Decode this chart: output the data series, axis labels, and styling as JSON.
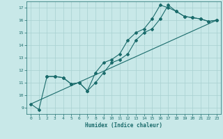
{
  "title": "",
  "xlabel": "Humidex (Indice chaleur)",
  "ylabel": "",
  "xlim": [
    -0.5,
    23.5
  ],
  "ylim": [
    8.5,
    17.5
  ],
  "xticks": [
    0,
    1,
    2,
    3,
    4,
    5,
    6,
    7,
    8,
    9,
    10,
    11,
    12,
    13,
    14,
    15,
    16,
    17,
    18,
    19,
    20,
    21,
    22,
    23
  ],
  "yticks": [
    9,
    10,
    11,
    12,
    13,
    14,
    15,
    16,
    17
  ],
  "background_color": "#c8e8e8",
  "grid_color": "#a8d0d0",
  "line_color": "#1a6b6b",
  "line1_x": [
    0,
    1,
    2,
    3,
    4,
    5,
    6,
    7,
    8,
    9,
    10,
    11,
    12,
    13,
    14,
    15,
    16,
    17,
    18,
    19,
    20,
    21,
    22,
    23
  ],
  "line1_y": [
    9.3,
    8.85,
    11.5,
    11.5,
    11.4,
    10.9,
    11.0,
    10.35,
    11.0,
    11.8,
    12.6,
    12.85,
    13.3,
    14.4,
    15.0,
    15.3,
    16.1,
    17.2,
    16.7,
    16.3,
    16.2,
    16.1,
    15.9,
    16.0
  ],
  "line2_x": [
    2,
    3,
    4,
    5,
    6,
    7,
    8,
    9,
    10,
    11,
    12,
    13,
    14,
    15,
    16,
    17,
    18,
    19,
    20,
    21,
    22,
    23
  ],
  "line2_y": [
    11.5,
    11.5,
    11.4,
    10.9,
    11.0,
    10.35,
    11.8,
    12.6,
    12.85,
    13.3,
    14.4,
    15.0,
    15.3,
    16.1,
    17.2,
    17.0,
    16.7,
    16.3,
    16.2,
    16.1,
    15.9,
    16.0
  ],
  "line3_x": [
    0,
    23
  ],
  "line3_y": [
    9.3,
    16.0
  ],
  "marker_size": 2.0,
  "linewidth": 0.8
}
